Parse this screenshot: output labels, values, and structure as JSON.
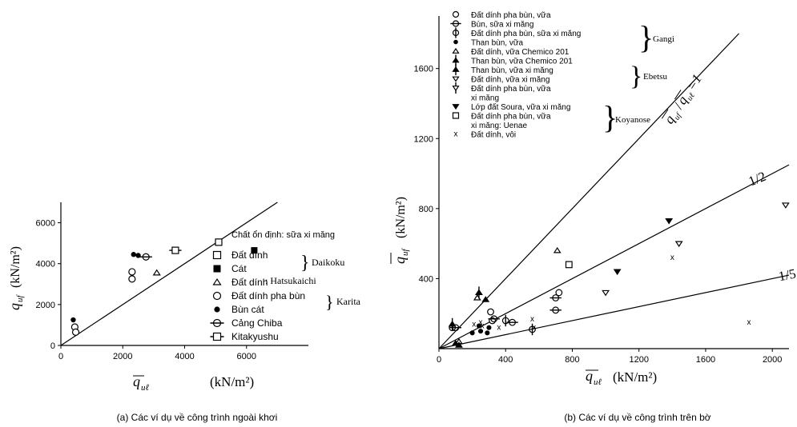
{
  "chart_data": [
    {
      "type": "scatter",
      "xlim": [
        0,
        8000
      ],
      "ylim": [
        0,
        7000
      ],
      "x_ticks": [
        "0",
        "2000",
        "4000",
        "6000"
      ],
      "y_ticks": [
        "0",
        "2000",
        "4000",
        "6000"
      ],
      "xlabel_main": "q",
      "xlabel_sub": "uℓ",
      "xlabel_units": "(kN/m²)",
      "ylabel_main": "q",
      "ylabel_sub": "uf",
      "ylabel_units": "(kN/m²)",
      "caption": "(a) Các ví dụ về công trình ngoài khơi",
      "legend_title": "Chất ổn định: sữa xi măng",
      "legend": [
        {
          "label": "Đất dính",
          "marker": "square-open"
        },
        {
          "label": "Cát",
          "marker": "square-filled"
        },
        {
          "label": "Đất dính",
          "marker": "triangle-open"
        },
        {
          "label": "Đất dính pha bùn",
          "marker": "circle-open"
        },
        {
          "label": "Bùn cát",
          "marker": "circle-filled"
        },
        {
          "label": "Cảng Chiba",
          "marker": "circle-bar"
        },
        {
          "label": "Kitakyushu",
          "marker": "square-bar"
        }
      ],
      "groups": [
        {
          "label": "Daikoku"
        },
        {
          "label": ": Hatsukaichi"
        },
        {
          "label": "Karita"
        }
      ],
      "lines": [
        {
          "label": "",
          "x": [
            0,
            7000
          ],
          "y": [
            0,
            7000
          ]
        }
      ],
      "series": [
        {
          "marker": "square-open",
          "points": [
            [
              5100,
              5050
            ]
          ]
        },
        {
          "marker": "square-filled",
          "points": [
            [
              6250,
              4650
            ]
          ]
        },
        {
          "marker": "triangle-open",
          "points": [
            [
              3100,
              3550
            ]
          ]
        },
        {
          "marker": "circle-open",
          "points": [
            [
              2300,
              3600
            ],
            [
              2300,
              3250
            ],
            [
              450,
              900
            ],
            [
              480,
              650
            ]
          ]
        },
        {
          "marker": "circle-filled",
          "points": [
            [
              2350,
              4450
            ],
            [
              2500,
              4400
            ],
            [
              400,
              1250
            ]
          ]
        },
        {
          "marker": "circle-bar",
          "points": [
            [
              2750,
              4330
            ]
          ]
        },
        {
          "marker": "square-bar",
          "points": [
            [
              3700,
              4650
            ]
          ]
        }
      ]
    },
    {
      "type": "scatter",
      "xlim": [
        0,
        2100
      ],
      "ylim": [
        0,
        1900
      ],
      "x_ticks": [
        "0",
        "400",
        "800",
        "1200",
        "1600",
        "2000"
      ],
      "y_ticks": [
        "400",
        "800",
        "1200",
        "1600"
      ],
      "xlabel_main": "q",
      "xlabel_sub": "uℓ",
      "xlabel_units": "(kN/m²)",
      "ylabel_main": "q",
      "ylabel_sub": "uf",
      "ylabel_units": "(kN/m²)",
      "caption": "(b) Các ví dụ về công trình trên bờ",
      "ratio_label": {
        "num": "q",
        "num_sub": "uf",
        "den": "q",
        "den_sub": "uℓ",
        "eq": "=1"
      },
      "line_labels": [
        "1/2",
        "1/5"
      ],
      "legend": [
        {
          "label": "Đất dính pha bùn, vữa",
          "marker": "circle-open"
        },
        {
          "label": "Bùn, sữa xi măng",
          "marker": "circle-hbar"
        },
        {
          "label": "Đất dính pha bùn, sữa xi măng",
          "marker": "circle-vbar"
        },
        {
          "label": "Than bùn, vữa",
          "marker": "circle-filled"
        },
        {
          "label": "Đất dính, vữa Chemico 201",
          "marker": "triangle-open"
        },
        {
          "label": "Than bùn, vữa Chemico 201",
          "marker": "triangle-filled-vbar"
        },
        {
          "label": "Than bùn, vữa xi măng",
          "marker": "triangle-filled-vbar2"
        },
        {
          "label": "Đất dính, vữa xi măng",
          "marker": "tri-down-open"
        },
        {
          "label": "Đất dính pha bùn, vữa",
          "marker": "tri-down-open-vbar"
        },
        {
          "label": "xi măng",
          "marker": "none"
        },
        {
          "label": "Lớp đất Soura, vữa xi măng",
          "marker": "tri-down-filled"
        },
        {
          "label": "Đất dính pha bùn, vữa",
          "marker": "square-open"
        },
        {
          "label": "xi măng: Uenae",
          "marker": "none"
        },
        {
          "label": "Đất dính, vôi",
          "marker": "x"
        }
      ],
      "groups": [
        {
          "label": "Gangi"
        },
        {
          "label": "Ebetsu"
        },
        {
          "label": "Koyanose"
        }
      ],
      "lines": [
        {
          "label": "=1",
          "x": [
            0,
            1800
          ],
          "y": [
            0,
            1800
          ]
        },
        {
          "label": "1/2",
          "x": [
            0,
            2100
          ],
          "y": [
            0,
            1050
          ]
        },
        {
          "label": "1/5",
          "x": [
            0,
            2100
          ],
          "y": [
            0,
            420
          ]
        }
      ],
      "series": [
        {
          "marker": "circle-open",
          "points": [
            [
              80,
              120
            ],
            [
              310,
              210
            ],
            [
              320,
              160
            ],
            [
              720,
              320
            ]
          ]
        },
        {
          "marker": "circle-hbar",
          "points": [
            [
              100,
              120
            ],
            [
              330,
              170
            ],
            [
              440,
              150
            ],
            [
              700,
              290
            ],
            [
              700,
              220
            ]
          ]
        },
        {
          "marker": "circle-vbar",
          "points": [
            [
              400,
              160
            ],
            [
              560,
              110
            ]
          ]
        },
        {
          "marker": "circle-filled",
          "points": [
            [
              200,
              90
            ],
            [
              240,
              130
            ],
            [
              250,
              100
            ],
            [
              290,
              90
            ],
            [
              300,
              120
            ]
          ]
        },
        {
          "marker": "triangle-open",
          "points": [
            [
              230,
              290
            ],
            [
              120,
              40
            ],
            [
              710,
              560
            ]
          ]
        },
        {
          "marker": "triangle-filled-vbar",
          "points": [
            [
              240,
              320
            ],
            [
              80,
              140
            ]
          ]
        },
        {
          "marker": "triangle-filled",
          "points": [
            [
              280,
              280
            ],
            [
              120,
              20
            ],
            [
              100,
              30
            ]
          ]
        },
        {
          "marker": "tri-down-open",
          "points": [
            [
              1000,
              320
            ],
            [
              1440,
              600
            ],
            [
              2080,
              820
            ]
          ]
        },
        {
          "marker": "tri-down-filled",
          "points": [
            [
              1070,
              440
            ],
            [
              1380,
              730
            ]
          ]
        },
        {
          "marker": "square-open",
          "points": [
            [
              780,
              480
            ]
          ]
        },
        {
          "marker": "x",
          "points": [
            [
              210,
              140
            ],
            [
              250,
              150
            ],
            [
              260,
              130
            ],
            [
              360,
              120
            ],
            [
              560,
              170
            ],
            [
              570,
              120
            ],
            [
              1400,
              520
            ],
            [
              1860,
              150
            ]
          ]
        }
      ]
    }
  ]
}
